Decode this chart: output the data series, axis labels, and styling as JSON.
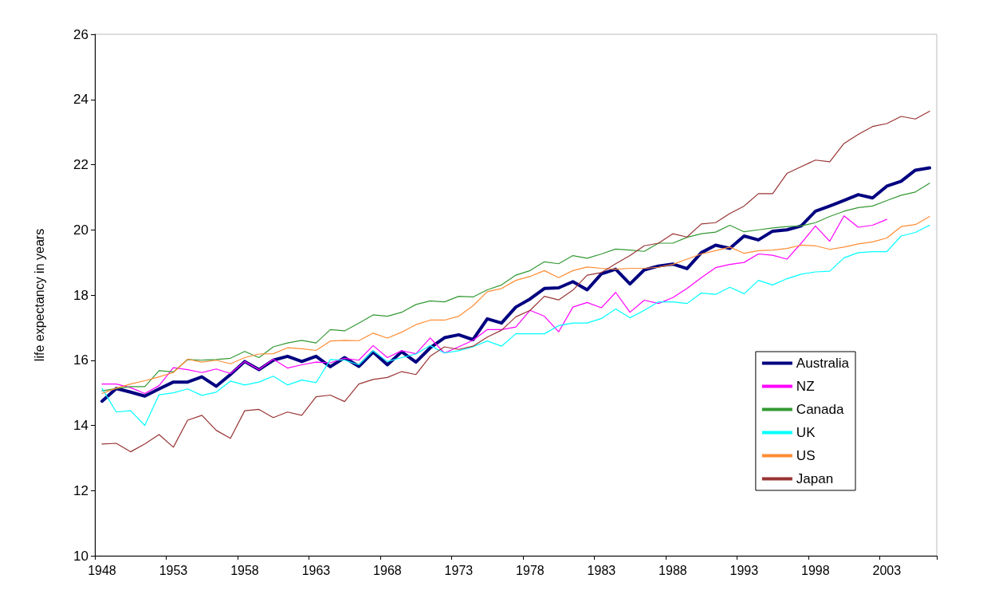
{
  "chart_data": {
    "type": "line",
    "ylabel": "life expectancy in years",
    "categories": [
      "1948",
      null,
      null,
      null,
      null,
      "1953",
      null,
      null,
      null,
      null,
      "1958",
      null,
      null,
      null,
      null,
      "1963",
      null,
      null,
      null,
      null,
      "1968",
      null,
      null,
      null,
      null,
      "1973",
      null,
      null,
      null,
      null,
      "1978",
      null,
      null,
      null,
      null,
      "1983",
      null,
      null,
      null,
      null,
      "1988",
      null,
      null,
      null,
      null,
      "1993",
      null,
      null,
      null,
      null,
      "1998",
      null,
      null,
      null,
      null,
      "2003",
      null,
      null,
      null
    ],
    "series": [
      {
        "name": "Australia",
        "color": "#000080",
        "values": [
          14.74,
          15.13,
          15.02,
          14.9,
          15.12,
          15.33,
          15.33,
          15.49,
          15.2,
          15.56,
          15.96,
          15.71,
          16.0,
          16.12,
          15.96,
          16.12,
          15.8,
          16.08,
          15.81,
          16.25,
          15.86,
          16.26,
          15.94,
          16.38,
          16.69,
          16.78,
          16.63,
          17.27,
          17.14,
          17.63,
          17.88,
          18.2,
          18.22,
          18.41,
          18.16,
          18.65,
          18.79,
          18.34,
          18.77,
          18.89,
          18.95,
          18.81,
          19.3,
          19.53,
          19.43,
          19.81,
          19.69,
          19.96,
          20.0,
          20.12,
          20.57,
          20.73,
          20.9,
          21.08,
          20.98,
          21.34,
          21.49,
          21.83,
          21.9
        ]
      },
      {
        "name": "NZ",
        "color": "#ff00ff",
        "values": [
          15.27,
          15.27,
          15.16,
          14.98,
          15.22,
          15.77,
          15.71,
          15.62,
          15.73,
          15.59,
          15.96,
          15.71,
          16.03,
          15.76,
          15.86,
          15.94,
          15.92,
          16.06,
          16.0,
          16.45,
          16.08,
          16.29,
          16.2,
          16.68,
          16.22,
          16.41,
          16.61,
          16.94,
          16.94,
          17.02,
          17.53,
          17.35,
          16.87,
          17.63,
          17.77,
          17.61,
          18.08,
          17.47,
          17.84,
          17.74,
          17.92,
          18.2,
          18.53,
          18.84,
          18.94,
          19.0,
          19.26,
          19.22,
          19.1,
          19.59,
          20.12,
          19.65,
          20.43,
          20.08,
          20.14,
          20.32,
          null,
          null,
          null
        ]
      },
      {
        "name": "Canada",
        "color": "#339933",
        "values": [
          15.06,
          15.13,
          15.19,
          15.19,
          15.68,
          15.64,
          16.02,
          16.0,
          16.02,
          16.06,
          16.27,
          16.08,
          16.41,
          16.53,
          16.61,
          16.53,
          16.94,
          16.9,
          17.14,
          17.39,
          17.35,
          17.47,
          17.71,
          17.82,
          17.79,
          17.96,
          17.94,
          18.16,
          18.31,
          18.61,
          18.75,
          19.02,
          18.96,
          19.21,
          19.13,
          19.26,
          19.41,
          19.38,
          19.34,
          19.59,
          19.59,
          19.77,
          19.88,
          19.93,
          20.14,
          19.94,
          20.0,
          20.06,
          20.1,
          20.12,
          20.22,
          20.41,
          20.57,
          20.68,
          20.73,
          20.9,
          21.06,
          21.16,
          21.43
        ]
      },
      {
        "name": "UK",
        "color": "#00ffff",
        "values": [
          15.14,
          14.41,
          14.45,
          14.0,
          14.94,
          15.0,
          15.12,
          14.92,
          15.02,
          15.36,
          15.24,
          15.33,
          15.51,
          15.24,
          15.39,
          15.31,
          16.02,
          16.0,
          15.86,
          16.29,
          15.96,
          16.08,
          16.19,
          16.45,
          16.22,
          16.29,
          16.41,
          16.59,
          16.43,
          16.81,
          16.81,
          16.81,
          17.06,
          17.14,
          17.14,
          17.28,
          17.57,
          17.3,
          17.53,
          17.79,
          17.79,
          17.74,
          18.06,
          18.02,
          18.24,
          18.04,
          18.45,
          18.31,
          18.5,
          18.64,
          18.71,
          18.73,
          19.14,
          19.3,
          19.33,
          19.33,
          19.81,
          19.92,
          20.14
        ]
      },
      {
        "name": "US",
        "color": "#ff8c33",
        "values": [
          14.98,
          15.14,
          15.27,
          15.37,
          15.49,
          15.62,
          16.03,
          15.94,
          16.0,
          15.89,
          16.08,
          16.19,
          16.2,
          16.38,
          16.35,
          16.3,
          16.59,
          16.61,
          16.6,
          16.83,
          16.68,
          16.86,
          17.09,
          17.23,
          17.23,
          17.35,
          17.67,
          18.1,
          18.2,
          18.45,
          18.57,
          18.75,
          18.53,
          18.75,
          18.86,
          18.82,
          18.79,
          18.82,
          18.82,
          18.85,
          18.94,
          19.1,
          19.26,
          19.36,
          19.47,
          19.28,
          19.36,
          19.38,
          19.43,
          19.53,
          19.51,
          19.4,
          19.47,
          19.57,
          19.63,
          19.75,
          20.1,
          20.16,
          20.41
        ]
      },
      {
        "name": "Japan",
        "color": "#993333",
        "values": [
          13.43,
          13.45,
          13.19,
          13.43,
          13.72,
          13.33,
          14.16,
          14.31,
          13.85,
          13.6,
          14.45,
          14.49,
          14.24,
          14.41,
          14.31,
          14.88,
          14.93,
          14.73,
          15.27,
          15.41,
          15.47,
          15.65,
          15.56,
          16.12,
          16.41,
          16.33,
          16.43,
          16.71,
          16.92,
          17.33,
          17.53,
          17.96,
          17.85,
          18.15,
          18.61,
          18.69,
          18.96,
          19.21,
          19.51,
          19.59,
          19.88,
          19.78,
          20.18,
          20.22,
          20.5,
          20.73,
          21.11,
          21.11,
          21.73,
          21.94,
          22.14,
          22.09,
          22.65,
          22.93,
          23.17,
          23.26,
          23.48,
          23.4,
          23.64
        ]
      }
    ],
    "ylim": [
      10,
      26
    ],
    "yticks": [
      10,
      12,
      14,
      16,
      18,
      20,
      22,
      24,
      26
    ],
    "grid": false,
    "legend": "bottom right",
    "marker": "none",
    "line_style": "solid"
  }
}
